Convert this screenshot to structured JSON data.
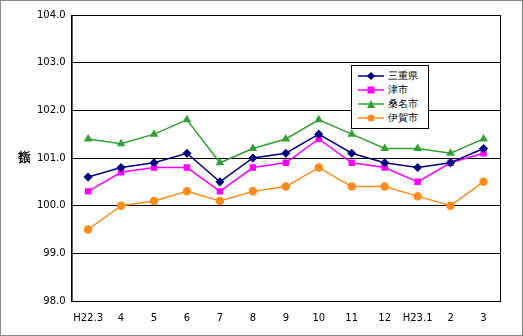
{
  "chart_data": {
    "type": "line",
    "y_label": "指数",
    "categories": [
      "H22.3",
      "4",
      "5",
      "6",
      "7",
      "8",
      "9",
      "10",
      "11",
      "12",
      "H23.1",
      "2",
      "3"
    ],
    "series": [
      {
        "name": "三重県",
        "color": "#000080",
        "marker": "diamond",
        "values": [
          100.6,
          100.8,
          100.9,
          101.1,
          100.5,
          101.0,
          101.1,
          101.5,
          101.1,
          100.9,
          100.8,
          100.9,
          101.2
        ]
      },
      {
        "name": "津市",
        "color": "#ff00ff",
        "marker": "square",
        "values": [
          100.3,
          100.7,
          100.8,
          100.8,
          100.3,
          100.8,
          100.9,
          101.4,
          100.9,
          100.8,
          100.5,
          100.9,
          101.1
        ]
      },
      {
        "name": "桑名市",
        "color": "#33a033",
        "marker": "triangle",
        "values": [
          101.4,
          101.3,
          101.5,
          101.8,
          100.9,
          101.2,
          101.4,
          101.8,
          101.5,
          101.2,
          101.2,
          101.1,
          101.4
        ]
      },
      {
        "name": "伊賀市",
        "color": "#ff8c1a",
        "marker": "circle",
        "values": [
          99.5,
          100.0,
          100.1,
          100.3,
          100.1,
          100.3,
          100.4,
          100.8,
          100.4,
          100.4,
          100.2,
          100.0,
          100.5
        ]
      }
    ],
    "ylim": [
      98,
      104
    ],
    "yticks": [
      {
        "value": 98,
        "label": "98.0"
      },
      {
        "value": 99,
        "label": "99.0"
      },
      {
        "value": 100,
        "label": "100.0"
      },
      {
        "value": 101,
        "label": "101.0"
      },
      {
        "value": 102,
        "label": "102.0"
      },
      {
        "value": 103,
        "label": "103.0"
      },
      {
        "value": 104,
        "label": "104.0"
      }
    ],
    "grid": true,
    "legend": "upper right"
  }
}
